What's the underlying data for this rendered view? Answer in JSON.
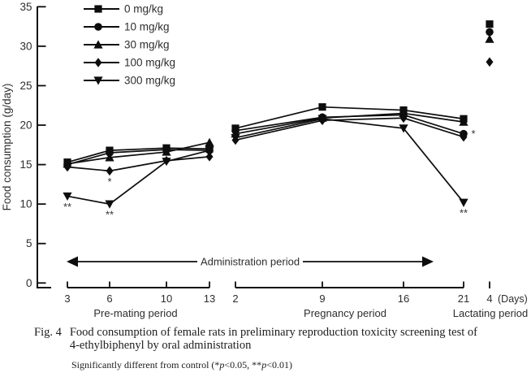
{
  "caption": {
    "fig_label": "Fig. 4",
    "line1": "Food consumption of female rats in preliminary reproduction toxicity screening test of",
    "line2": "4-ethylbiphenyl by oral administration",
    "sig": {
      "pre": "Significantly different from control (*",
      "p1": "p",
      "mid": "<0.05, **",
      "p2": "p",
      "post": "<0.01)"
    }
  },
  "chart_data": {
    "type": "line",
    "title": "",
    "ylabel": "Food consumption (g/day)",
    "ylim": [
      0,
      35
    ],
    "ytick_step": 5,
    "x_unit_label": "(Days)",
    "arrow_label": "Administration period",
    "legend_position": "top-left",
    "grid": false,
    "x_groups": [
      {
        "key": "pre_mating",
        "name": "Pre-mating period",
        "days": [
          3,
          6,
          10,
          13
        ]
      },
      {
        "key": "pregnancy",
        "name": "Pregnancy period",
        "days": [
          2,
          9,
          16,
          21
        ]
      },
      {
        "key": "lactating",
        "name": "Lactating period",
        "days": [
          4
        ]
      }
    ],
    "series": [
      {
        "name": "0 mg/kg",
        "marker": "square",
        "pre_mating": [
          15.3,
          16.8,
          17.1,
          17.0
        ],
        "pregnancy": [
          19.6,
          22.3,
          21.9,
          20.8
        ],
        "lactating": [
          32.8
        ]
      },
      {
        "name": "10 mg/kg",
        "marker": "circle",
        "pre_mating": [
          15.0,
          16.5,
          16.9,
          16.8
        ],
        "pregnancy": [
          19.3,
          21.0,
          21.3,
          18.9
        ],
        "lactating": [
          31.8
        ]
      },
      {
        "name": "30 mg/kg",
        "marker": "triangle",
        "pre_mating": [
          15.1,
          15.9,
          16.6,
          17.8
        ],
        "pregnancy": [
          18.9,
          20.9,
          21.5,
          20.4
        ],
        "lactating": [
          30.9
        ]
      },
      {
        "name": "100 mg/kg",
        "marker": "diamond",
        "pre_mating": [
          14.7,
          14.2,
          15.5,
          16.0
        ],
        "pregnancy": [
          18.1,
          20.6,
          20.9,
          18.5
        ],
        "lactating": [
          28.0
        ]
      },
      {
        "name": "300 mg/kg",
        "marker": "triangle-down",
        "pre_mating": [
          11.0,
          10.0,
          15.4,
          16.8
        ],
        "pregnancy": [
          18.4,
          20.8,
          19.6,
          10.2
        ],
        "lactating": []
      }
    ],
    "annotations": [
      {
        "text": "**",
        "series_index": 4,
        "period": "pre_mating",
        "point_index": 0,
        "placement": "below"
      },
      {
        "text": "*",
        "series_index": 3,
        "period": "pre_mating",
        "point_index": 1,
        "placement": "below"
      },
      {
        "text": "**",
        "series_index": 4,
        "period": "pre_mating",
        "point_index": 1,
        "placement": "below"
      },
      {
        "text": "*",
        "series_index": 1,
        "period": "pregnancy",
        "point_index": 3,
        "placement": "right"
      },
      {
        "text": "**",
        "series_index": 4,
        "period": "pregnancy",
        "point_index": 3,
        "placement": "below"
      }
    ],
    "colors": {
      "ink": "#0d0d0d",
      "text": "#2e2e2e",
      "background": "#ffffff"
    }
  }
}
